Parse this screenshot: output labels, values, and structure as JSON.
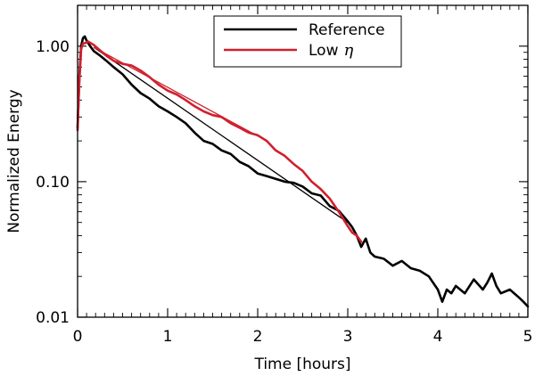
{
  "chart_data": {
    "type": "line",
    "title": "",
    "xlabel": "Time [hours]",
    "ylabel": "Normalized Energy",
    "xlim": [
      0,
      5
    ],
    "ylim": [
      0.01,
      2.0
    ],
    "yscale": "log",
    "x_ticks": [
      0,
      1,
      2,
      3,
      4,
      5
    ],
    "x_tick_labels": [
      "0",
      "1",
      "2",
      "3",
      "4",
      "5"
    ],
    "y_ticks": [
      0.01,
      0.1,
      1.0
    ],
    "y_tick_labels": [
      "0.01",
      "0.10",
      "1.00"
    ],
    "grid": false,
    "legend": {
      "position": "top-center",
      "entries": [
        {
          "label": "Reference",
          "color": "#000000"
        },
        {
          "label": "Low",
          "symbol": "η",
          "color": "#d0202e"
        }
      ]
    },
    "series": [
      {
        "name": "Reference",
        "color": "#000000",
        "x": [
          0.0,
          0.02,
          0.04,
          0.06,
          0.08,
          0.1,
          0.14,
          0.18,
          0.25,
          0.32,
          0.4,
          0.5,
          0.6,
          0.7,
          0.8,
          0.9,
          1.0,
          1.1,
          1.2,
          1.3,
          1.4,
          1.5,
          1.6,
          1.7,
          1.8,
          1.9,
          2.0,
          2.1,
          2.2,
          2.3,
          2.4,
          2.5,
          2.6,
          2.7,
          2.8,
          2.9,
          3.0,
          3.05,
          3.1,
          3.15,
          3.2,
          3.25,
          3.3,
          3.4,
          3.5,
          3.6,
          3.7,
          3.8,
          3.9,
          4.0,
          4.05,
          4.1,
          4.15,
          4.2,
          4.3,
          4.4,
          4.5,
          4.55,
          4.6,
          4.65,
          4.7,
          4.8,
          4.9,
          4.95,
          5.0
        ],
        "y": [
          0.25,
          0.6,
          1.0,
          1.15,
          1.18,
          1.1,
          1.0,
          0.92,
          0.85,
          0.78,
          0.7,
          0.62,
          0.52,
          0.45,
          0.41,
          0.36,
          0.33,
          0.3,
          0.27,
          0.23,
          0.2,
          0.19,
          0.17,
          0.16,
          0.14,
          0.13,
          0.115,
          0.11,
          0.105,
          0.1,
          0.098,
          0.092,
          0.082,
          0.079,
          0.066,
          0.061,
          0.051,
          0.046,
          0.04,
          0.033,
          0.038,
          0.03,
          0.028,
          0.027,
          0.024,
          0.026,
          0.023,
          0.022,
          0.02,
          0.016,
          0.013,
          0.016,
          0.015,
          0.017,
          0.015,
          0.019,
          0.016,
          0.018,
          0.021,
          0.017,
          0.015,
          0.016,
          0.014,
          0.013,
          0.012
        ]
      },
      {
        "name": "Low",
        "color": "#d0202e",
        "x": [
          0.0,
          0.02,
          0.04,
          0.06,
          0.08,
          0.12,
          0.18,
          0.25,
          0.32,
          0.4,
          0.5,
          0.6,
          0.7,
          0.8,
          0.9,
          1.0,
          1.1,
          1.2,
          1.3,
          1.4,
          1.5,
          1.6,
          1.7,
          1.8,
          1.9,
          2.0,
          2.1,
          2.2,
          2.3,
          2.4,
          2.5,
          2.6,
          2.7,
          2.8,
          2.9,
          3.0,
          3.05,
          3.1,
          3.15
        ],
        "y": [
          0.24,
          0.55,
          0.95,
          1.05,
          1.05,
          1.08,
          1.02,
          0.93,
          0.85,
          0.78,
          0.74,
          0.72,
          0.66,
          0.59,
          0.52,
          0.47,
          0.44,
          0.4,
          0.36,
          0.33,
          0.31,
          0.3,
          0.27,
          0.25,
          0.23,
          0.22,
          0.2,
          0.17,
          0.155,
          0.135,
          0.12,
          0.1,
          0.088,
          0.075,
          0.06,
          0.047,
          0.042,
          0.04,
          0.036
        ]
      }
    ],
    "fit_lines": [
      {
        "series": "Reference",
        "color": "#000000",
        "x": [
          0.18,
          3.0
        ],
        "y": [
          0.98,
          0.05
        ]
      },
      {
        "series": "Low",
        "color": "#d0202e",
        "x": [
          0.18,
          2.1
        ],
        "y": [
          0.98,
          0.2
        ]
      }
    ]
  }
}
